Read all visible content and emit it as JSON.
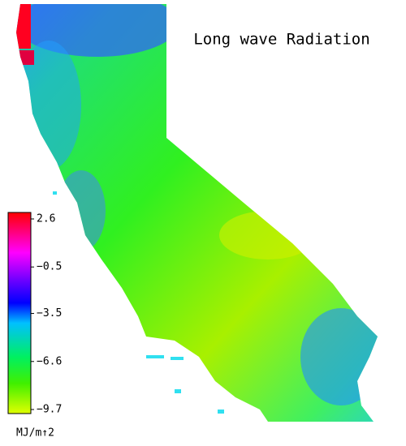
{
  "title": "Long wave Radiation",
  "colorbar": {
    "ticks": [
      {
        "value": 2.6,
        "label": "2.6"
      },
      {
        "value": -0.5,
        "label": "−0.5"
      },
      {
        "value": -3.5,
        "label": "−3.5"
      },
      {
        "value": -6.6,
        "label": "−6.6"
      },
      {
        "value": -9.7,
        "label": "−9.7"
      }
    ],
    "unit": "MJ/m↑2"
  }
}
